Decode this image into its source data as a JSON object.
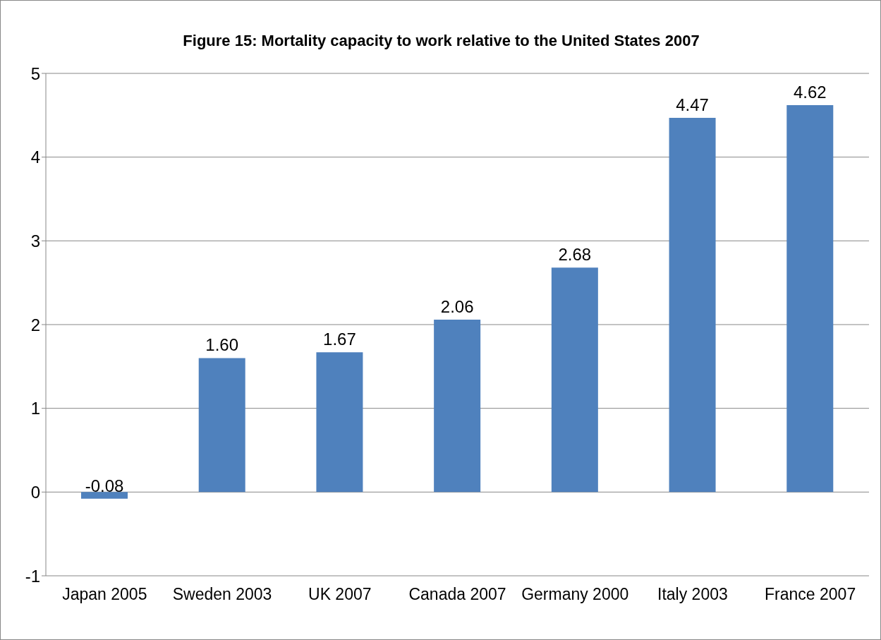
{
  "chart_data": {
    "type": "bar",
    "title": "Figure 15: Mortality capacity to work relative to the United States 2007",
    "categories": [
      "Japan 2005",
      "Sweden 2003",
      "UK 2007",
      "Canada 2007",
      "Germany 2000",
      "Italy 2003",
      "France 2007"
    ],
    "values": [
      -0.08,
      1.6,
      1.67,
      2.06,
      2.68,
      4.47,
      4.62
    ],
    "value_labels": [
      "-0.08",
      "1.60",
      "1.67",
      "2.06",
      "2.68",
      "4.47",
      "4.62"
    ],
    "color": "#4f81bd",
    "ylim": [
      -1,
      5
    ],
    "yticks": [
      -1,
      0,
      1,
      2,
      3,
      4,
      5
    ],
    "grid": "y",
    "legend": false
  }
}
